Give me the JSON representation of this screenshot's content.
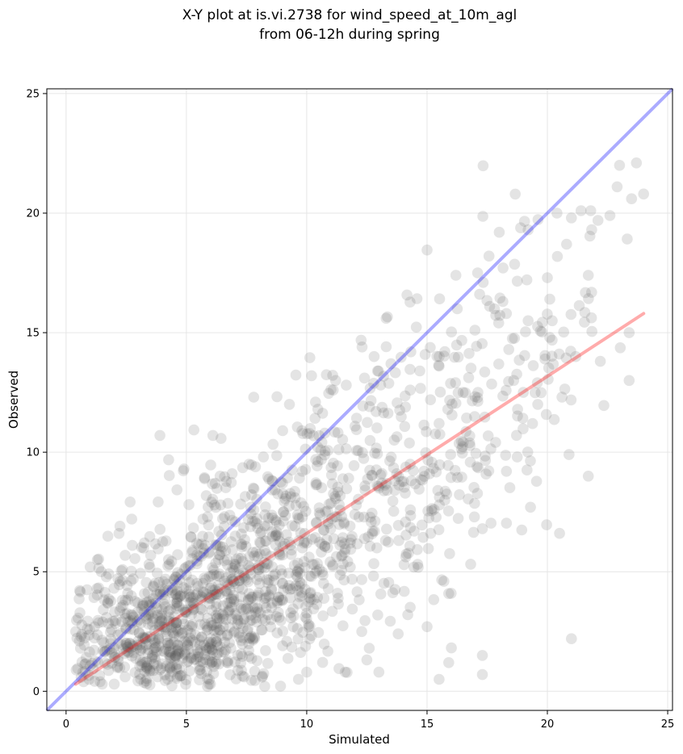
{
  "chart_data": {
    "type": "scatter",
    "title_lines": [
      "X-Y plot at is.vi.2738 for wind_speed_at_10m_agl",
      "from 06-12h during spring"
    ],
    "xlabel": "Simulated",
    "ylabel": "Observed",
    "xlim": [
      -0.8,
      25.2
    ],
    "ylim": [
      -0.8,
      25.2
    ],
    "xticks": [
      0,
      5,
      10,
      15,
      20,
      25
    ],
    "yticks": [
      0,
      5,
      10,
      15,
      20,
      25
    ],
    "grid": true,
    "point_color": "#555555",
    "point_count": 1600,
    "one_to_one_line": {
      "color": "#0000ff",
      "x": [
        -0.8,
        25.2
      ],
      "y": [
        -0.8,
        25.2
      ]
    },
    "fit_line": {
      "color": "#ff0000",
      "x": [
        0.4,
        24.0
      ],
      "y": [
        0.3,
        15.8
      ]
    },
    "sample_points": [
      [
        0.4,
        2.5
      ],
      [
        1.0,
        5.2
      ],
      [
        1.3,
        5.5
      ],
      [
        2.2,
        6.6
      ],
      [
        3.9,
        10.7
      ],
      [
        6.1,
        10.7
      ],
      [
        4.9,
        9.3
      ],
      [
        7.8,
        12.3
      ],
      [
        9.8,
        10.9
      ],
      [
        11.1,
        12.6
      ],
      [
        12.3,
        14.4
      ],
      [
        13.3,
        15.6
      ],
      [
        12.8,
        14.0
      ],
      [
        15.5,
        14.0
      ],
      [
        16.2,
        17.4
      ],
      [
        17.1,
        17.5
      ],
      [
        18.0,
        19.2
      ],
      [
        19.2,
        19.3
      ],
      [
        20.4,
        20.0
      ],
      [
        20.8,
        18.7
      ],
      [
        21.0,
        19.8
      ],
      [
        21.4,
        20.1
      ],
      [
        21.8,
        20.1
      ],
      [
        22.6,
        19.9
      ],
      [
        22.9,
        21.1
      ],
      [
        23.0,
        22.0
      ],
      [
        23.7,
        22.1
      ],
      [
        24.0,
        20.8
      ],
      [
        23.5,
        20.6
      ],
      [
        23.4,
        15.0
      ],
      [
        23.4,
        13.0
      ],
      [
        22.2,
        13.8
      ],
      [
        21.7,
        17.4
      ],
      [
        21.7,
        9.0
      ],
      [
        21.0,
        2.2
      ],
      [
        20.9,
        9.9
      ],
      [
        19.3,
        7.7
      ],
      [
        18.3,
        9.2
      ],
      [
        17.3,
        6.8
      ],
      [
        17.3,
        1.5
      ],
      [
        17.3,
        0.7
      ],
      [
        16.0,
        4.1
      ],
      [
        15.7,
        4.6
      ],
      [
        15.9,
        1.2
      ],
      [
        15.5,
        0.5
      ],
      [
        15.0,
        2.7
      ],
      [
        14.2,
        3.2
      ],
      [
        13.8,
        2.4
      ],
      [
        13.0,
        0.8
      ],
      [
        12.6,
        1.8
      ],
      [
        11.6,
        0.8
      ],
      [
        10.0,
        0.8
      ],
      [
        9.0,
        1.9
      ],
      [
        6.0,
        0.3
      ],
      [
        3.8,
        0.6
      ],
      [
        2.0,
        0.3
      ],
      [
        1.5,
        0.3
      ],
      [
        0.7,
        0.8
      ],
      [
        0.6,
        1.8
      ],
      [
        17.6,
        16.1
      ],
      [
        17.8,
        16.0
      ],
      [
        18.3,
        15.8
      ],
      [
        19.2,
        15.5
      ],
      [
        20.0,
        17.3
      ],
      [
        20.1,
        16.4
      ],
      [
        20.2,
        15.5
      ],
      [
        19.9,
        13.9
      ],
      [
        20.1,
        14.8
      ],
      [
        19.0,
        12.5
      ],
      [
        18.6,
        13.0
      ],
      [
        19.6,
        12.0
      ],
      [
        16.5,
        12.5
      ],
      [
        15.5,
        11.2
      ],
      [
        14.3,
        9.5
      ],
      [
        13.0,
        8.5
      ],
      [
        12.0,
        7.4
      ],
      [
        11.0,
        6.8
      ],
      [
        10.0,
        6.2
      ],
      [
        9.0,
        5.7
      ],
      [
        8.0,
        5.1
      ],
      [
        7.0,
        4.5
      ],
      [
        6.0,
        3.9
      ],
      [
        5.0,
        3.3
      ],
      [
        4.0,
        2.7
      ],
      [
        3.0,
        2.1
      ],
      [
        2.0,
        1.6
      ],
      [
        6.4,
        9.0
      ],
      [
        6.9,
        9.1
      ],
      [
        7.6,
        9.5
      ],
      [
        8.2,
        9.8
      ],
      [
        9.0,
        10.9
      ],
      [
        10.2,
        13.2
      ],
      [
        11.2,
        13.0
      ],
      [
        12.4,
        13.1
      ],
      [
        13.5,
        13.7
      ],
      [
        14.3,
        12.6
      ],
      [
        14.7,
        13.4
      ],
      [
        15.5,
        13.6
      ]
    ],
    "density_regions": [
      {
        "x": 5.2,
        "y": 3.2,
        "sx": 2.6,
        "sy": 1.7,
        "w": 0.3
      },
      {
        "x": 3.2,
        "y": 1.8,
        "sx": 1.6,
        "sy": 1.1,
        "w": 0.18
      },
      {
        "x": 8.0,
        "y": 5.5,
        "sx": 2.2,
        "sy": 2.0,
        "w": 0.18
      },
      {
        "x": 11.0,
        "y": 7.5,
        "sx": 2.2,
        "sy": 2.4,
        "w": 0.13
      },
      {
        "x": 14.0,
        "y": 9.5,
        "sx": 2.0,
        "sy": 2.6,
        "w": 0.09
      },
      {
        "x": 17.0,
        "y": 11.5,
        "sx": 1.9,
        "sy": 2.6,
        "w": 0.06
      },
      {
        "x": 20.0,
        "y": 15.0,
        "sx": 1.8,
        "sy": 2.8,
        "w": 0.03
      },
      {
        "x": 6.0,
        "y": 1.0,
        "sx": 1.5,
        "sy": 0.6,
        "w": 0.03
      }
    ]
  }
}
